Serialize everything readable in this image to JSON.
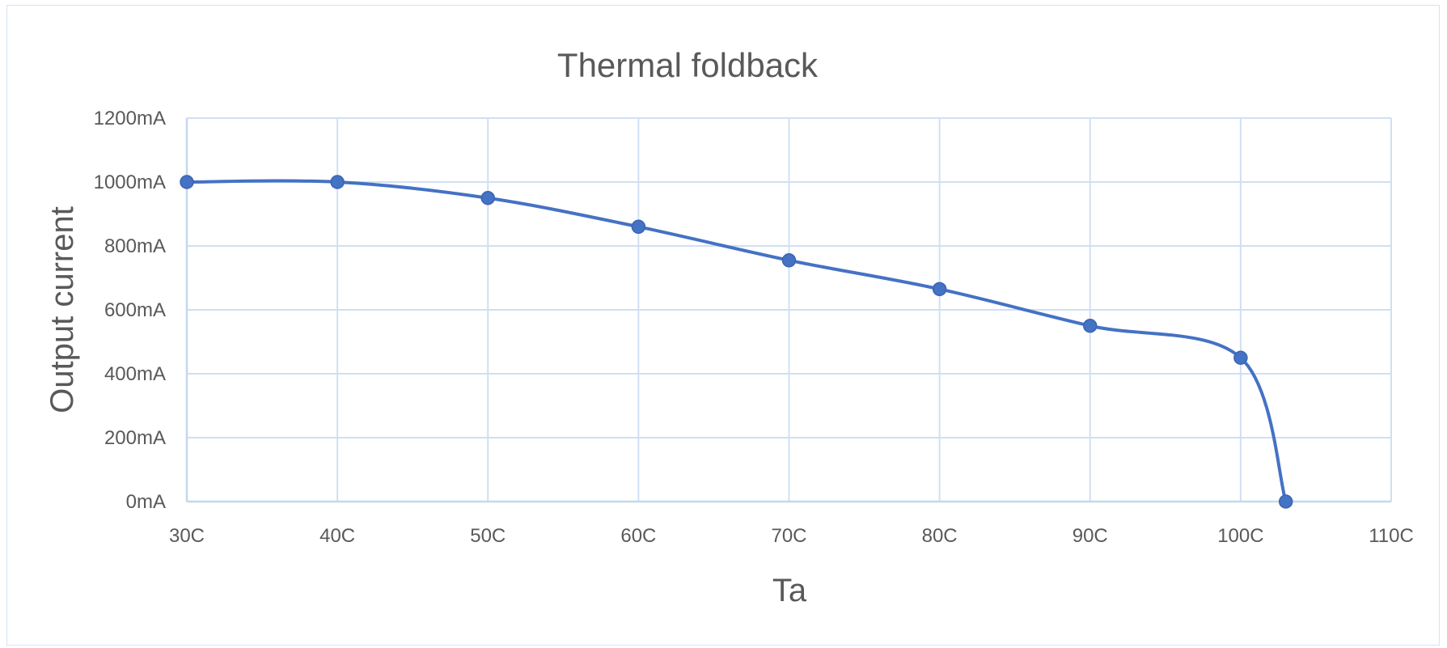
{
  "chart_data": {
    "type": "line",
    "title": "Thermal foldback",
    "xlabel": "Ta",
    "ylabel": "Output current",
    "xlim": [
      30,
      110
    ],
    "ylim": [
      0,
      1200
    ],
    "x_ticks": [
      30,
      40,
      50,
      60,
      70,
      80,
      90,
      100,
      110
    ],
    "x_tick_labels": [
      "30C",
      "40C",
      "50C",
      "60C",
      "70C",
      "80C",
      "90C",
      "100C",
      "110C"
    ],
    "y_ticks": [
      0,
      200,
      400,
      600,
      800,
      1000,
      1200
    ],
    "y_tick_labels": [
      "0mA",
      "200mA",
      "400mA",
      "600mA",
      "800mA",
      "1000mA",
      "1200mA"
    ],
    "grid": true,
    "legend": "none",
    "smooth": true,
    "series": [
      {
        "x": [
          30,
          40,
          50,
          60,
          70,
          80,
          90,
          100,
          103
        ],
        "y": [
          1000,
          1000,
          950,
          860,
          755,
          665,
          550,
          450,
          0
        ],
        "color": "#4472c4"
      }
    ]
  }
}
